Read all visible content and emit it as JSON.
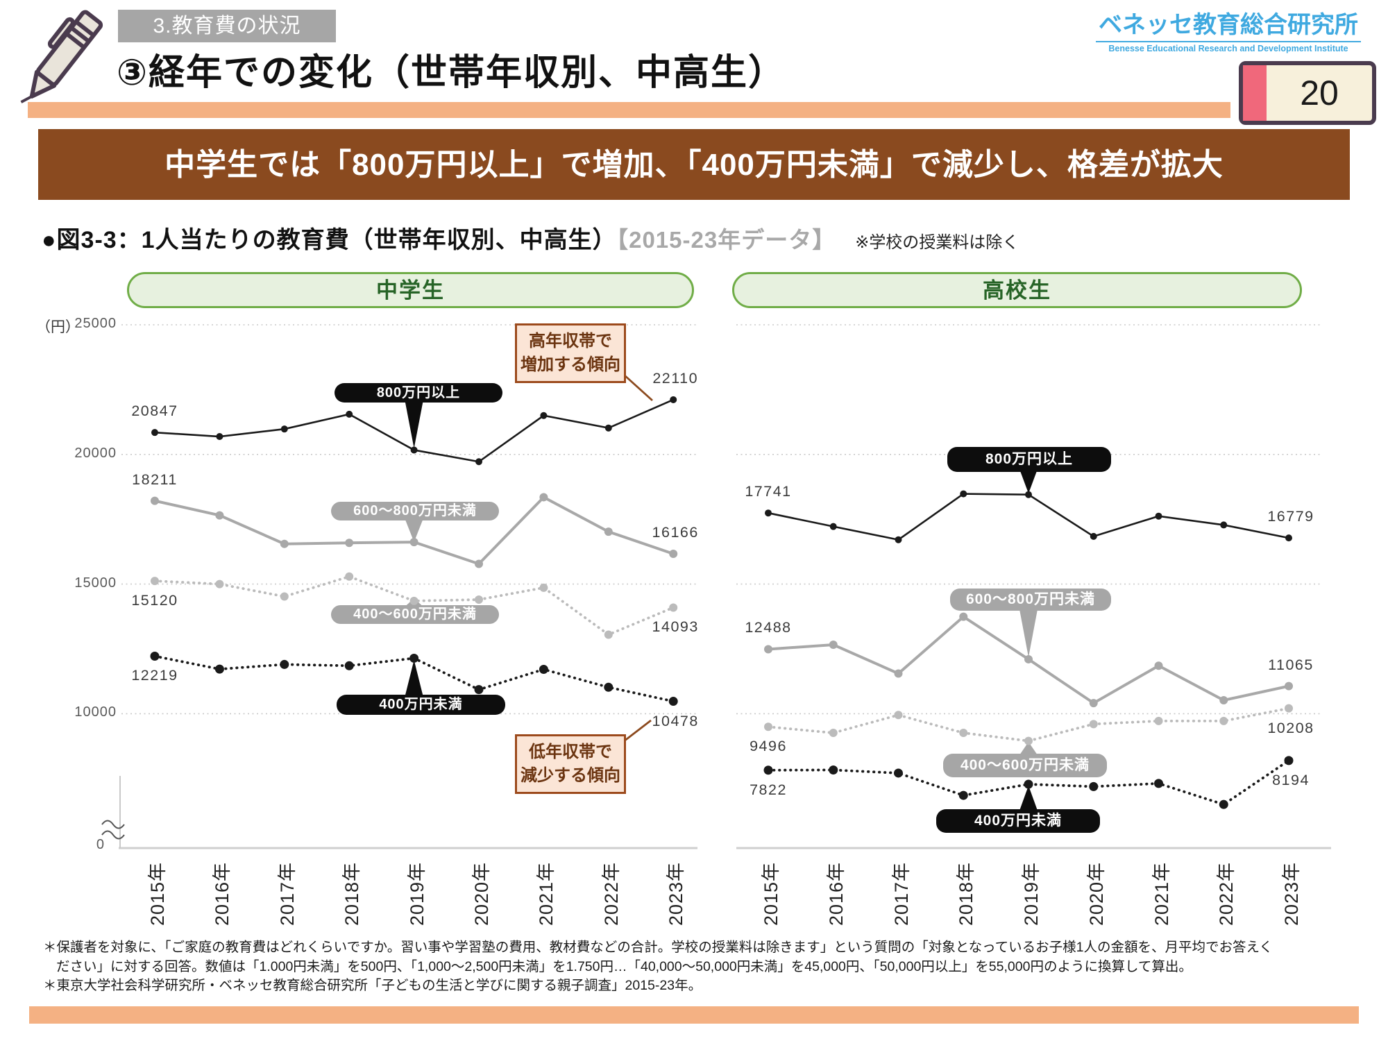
{
  "header": {
    "section_tag": "3.教育費の状況",
    "title": "③経年での変化（世帯年収別、中高生）",
    "logo_jp": "ベネッセ教育総合研究所",
    "logo_en": "Benesse  Educational Research and Development Institute",
    "page_number": "20"
  },
  "banner": "中学生では「800万円以上」で増加、「400万円未満」で減少し、格差が拡大",
  "figure_header": {
    "label": "●図3-3：1人当たりの教育費（世帯年収別、中高生）",
    "period": "【2015-23年データ】",
    "note": "※学校の授業料は除く"
  },
  "unit_label": "（円）",
  "zero_label": "0",
  "annotations": {
    "increase": {
      "line1": "高年収帯で",
      "line2": "増加する傾向"
    },
    "decrease": {
      "line1": "低年収帯で",
      "line2": "減少する傾向"
    }
  },
  "footnotes": [
    "＊保護者を対象に、「ご家庭の教育費はどれくらいですか。習い事や学習塾の費用、教材費などの合計。学校の授業料は除きます」という質問の「対象となっているお子様1人の金額を、月平均でお答えく",
    "ださい」に対する回答。数値は「1.000円未満」を500円、「1,000〜2,500円未満」を1.750円…「40,000〜50,000円未満」を45,000円、「50,000円以上」を55,000円のように換算して算出。",
    "＊東京大学社会科学研究所・ベネッセ教育総合研究所「子どもの生活と学びに関する親子調査」2015-23年。"
  ],
  "chart_data": {
    "type": "line",
    "ylabel": "円",
    "y_ticks": [
      "25000",
      "20000",
      "15000",
      "10000"
    ],
    "ylim_shown": [
      10000,
      25000
    ],
    "grid": "dotted-horizontal",
    "x_categories": [
      "2015年",
      "2016年",
      "2017年",
      "2018年",
      "2019年",
      "2020年",
      "2021年",
      "2022年",
      "2023年"
    ],
    "charts": [
      {
        "id": "middle-school",
        "title": "中学生",
        "series": [
          {
            "name": "800万円以上",
            "style": "black-solid",
            "values": [
              20847,
              20690,
              20980,
              21550,
              20170,
              19720,
              21500,
              21020,
              22110
            ],
            "first_label": "20847",
            "first_pos": "above",
            "last_label": "22110",
            "last_pos": "above"
          },
          {
            "name": "600〜800万円未満",
            "style": "gray-solid",
            "values": [
              18211,
              17650,
              16550,
              16590,
              16620,
              15780,
              18350,
              17020,
              16166
            ],
            "first_label": "18211",
            "first_pos": "above",
            "last_label": "16166",
            "last_pos": "above"
          },
          {
            "name": "400〜600万円未満",
            "style": "gray-dotted",
            "values": [
              15120,
              15000,
              14520,
              15290,
              14350,
              14400,
              14860,
              13050,
              14093
            ],
            "first_label": "15120",
            "first_pos": "below",
            "last_label": "14093",
            "last_pos": "below"
          },
          {
            "name": "400万円未満",
            "style": "black-dotted",
            "values": [
              12219,
              11720,
              11900,
              11850,
              12140,
              10930,
              11710,
              11020,
              10478
            ],
            "first_label": "12219",
            "first_pos": "below",
            "last_label": "10478",
            "last_pos": "below"
          }
        ]
      },
      {
        "id": "high-school",
        "title": "高校生",
        "series": [
          {
            "name": "800万円以上",
            "style": "black-solid",
            "values": [
              17741,
              17220,
              16710,
              18480,
              18450,
              16840,
              17620,
              17280,
              16779
            ],
            "first_label": "17741",
            "first_pos": "above",
            "last_label": "16779",
            "last_pos": "above"
          },
          {
            "name": "600〜800万円未満",
            "style": "gray-solid",
            "values": [
              12488,
              12660,
              11550,
              13740,
              12100,
              10410,
              11850,
              10520,
              11065
            ],
            "first_label": "12488",
            "first_pos": "above",
            "last_label": "11065",
            "last_pos": "above"
          },
          {
            "name": "400〜600万円未満",
            "style": "gray-dotted",
            "values": [
              9496,
              9260,
              9950,
              9260,
              8950,
              9600,
              9720,
              9720,
              10208
            ],
            "first_label": "9496",
            "first_pos": "below",
            "last_label": "10208",
            "last_pos": "below"
          },
          {
            "name": "400万円未満",
            "style": "black-dotted",
            "values": [
              7822,
              7830,
              7710,
              6850,
              7280,
              7190,
              7310,
              6500,
              8194
            ],
            "first_label": "7822",
            "first_pos": "below",
            "last_label": "8194",
            "last_pos": "below"
          }
        ]
      }
    ]
  }
}
